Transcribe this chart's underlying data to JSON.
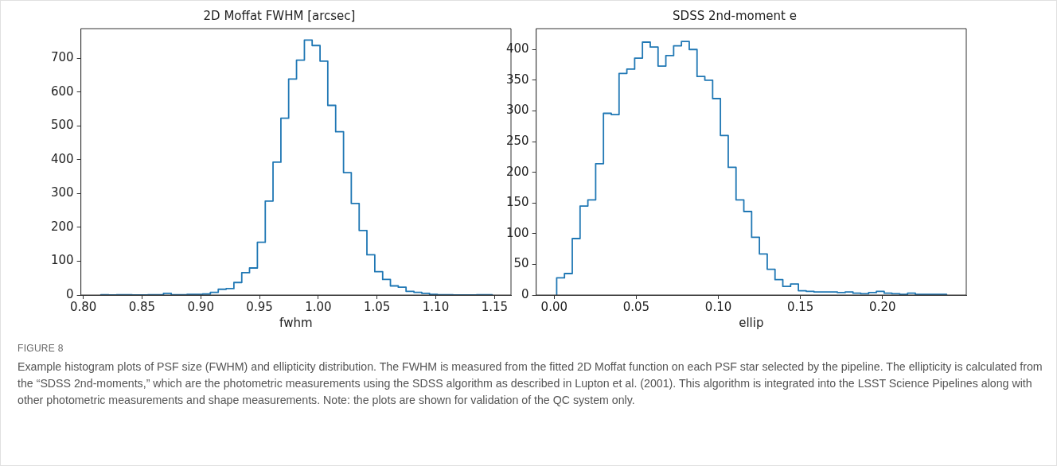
{
  "chart_data": [
    {
      "type": "histogram",
      "title": "2D Moffat FWHM [arcsec]",
      "xlabel": "fwhm",
      "color": "#1f77b4",
      "bins": [
        0.815,
        0.8217,
        0.8283,
        0.835,
        0.8416,
        0.8483,
        0.855,
        0.8616,
        0.8683,
        0.8749,
        0.8816,
        0.8883,
        0.8949,
        0.9016,
        0.9082,
        0.9149,
        0.9216,
        0.9282,
        0.9349,
        0.9415,
        0.9482,
        0.9549,
        0.9615,
        0.9682,
        0.9748,
        0.9815,
        0.9882,
        0.9948,
        1.0015,
        1.0081,
        1.0148,
        1.0215,
        1.0281,
        1.0348,
        1.0414,
        1.0481,
        1.0548,
        1.0614,
        1.0681,
        1.0747,
        1.0814,
        1.0881,
        1.0947,
        1.1014,
        1.108,
        1.1147,
        1.1214,
        1.128,
        1.1347,
        1.1413,
        1.148
      ],
      "values": [
        1,
        0,
        1,
        1,
        0,
        0,
        1,
        1,
        5,
        1,
        1,
        2,
        2,
        3,
        8,
        17,
        19,
        37,
        66,
        80,
        156,
        278,
        393,
        523,
        639,
        695,
        754,
        738,
        692,
        561,
        483,
        362,
        271,
        191,
        119,
        69,
        46,
        27,
        23,
        11,
        8,
        5,
        2,
        1,
        1,
        0,
        0,
        0,
        1,
        1
      ],
      "xlim": [
        0.798,
        1.164
      ],
      "ylim": [
        0,
        788
      ],
      "xticks": [
        {
          "value": 0.8,
          "label": "0.80"
        },
        {
          "value": 0.85,
          "label": "0.85"
        },
        {
          "value": 0.9,
          "label": "0.90"
        },
        {
          "value": 0.95,
          "label": "0.95"
        },
        {
          "value": 1.0,
          "label": "1.00"
        },
        {
          "value": 1.05,
          "label": "1.05"
        },
        {
          "value": 1.1,
          "label": "1.10"
        },
        {
          "value": 1.15,
          "label": "1.15"
        }
      ],
      "yticks": [
        0,
        100,
        200,
        300,
        400,
        500,
        600,
        700
      ],
      "annotations": [
        "FIGURE 8",
        "Example histogram plots of PSF size (FWHM) and ellipticity distribution. The FWHM is measured from the fitted 2D Moffat function on each PSF star selected by the pipeline. The ellipticity is calculated from the “SDSS 2nd-moments,” which are the photometric measurements using the SDSS algorithm as described in Lupton et al. (2001). This algorithm is integrated into the LSST Science Pipelines along with other photometric measurements and shape measurements. Note: the plots are shown for validation of the QC system only."
      ]
    },
    {
      "type": "histogram",
      "title": "SDSS 2nd-moment e",
      "xlabel": "ellip",
      "color": "#1f77b4",
      "bins": [
        0.0015,
        0.00625,
        0.011,
        0.01575,
        0.0205,
        0.02525,
        0.03,
        0.03475,
        0.0395,
        0.04425,
        0.049,
        0.05375,
        0.0585,
        0.06325,
        0.068,
        0.07275,
        0.0775,
        0.08225,
        0.087,
        0.09175,
        0.0965,
        0.10125,
        0.106,
        0.11075,
        0.1155,
        0.12025,
        0.125,
        0.12975,
        0.1345,
        0.13925,
        0.144,
        0.14875,
        0.1535,
        0.15825,
        0.163,
        0.16775,
        0.1725,
        0.17725,
        0.182,
        0.18675,
        0.1915,
        0.19625,
        0.201,
        0.20575,
        0.2105,
        0.21525,
        0.22,
        0.22475,
        0.2295,
        0.23425,
        0.239
      ],
      "values": [
        28,
        35,
        92,
        145,
        155,
        214,
        296,
        294,
        361,
        368,
        386,
        412,
        404,
        373,
        390,
        406,
        413,
        400,
        356,
        350,
        320,
        260,
        208,
        155,
        136,
        94,
        67,
        42,
        25,
        14,
        18,
        7,
        6,
        5,
        5,
        5,
        4,
        5,
        3,
        2,
        4,
        6,
        3,
        2,
        1,
        3,
        1,
        1,
        1,
        1
      ],
      "xlim": [
        -0.011,
        0.251
      ],
      "ylim": [
        0,
        434
      ],
      "xticks": [
        {
          "value": 0,
          "label": "0.00"
        },
        {
          "value": 0.05,
          "label": "0.05"
        },
        {
          "value": 0.1,
          "label": "0.10"
        },
        {
          "value": 0.15,
          "label": "0.15"
        },
        {
          "value": 0.2,
          "label": "0.20"
        }
      ],
      "yticks": [
        0,
        50,
        100,
        150,
        200,
        250,
        300,
        350,
        400
      ]
    }
  ]
}
